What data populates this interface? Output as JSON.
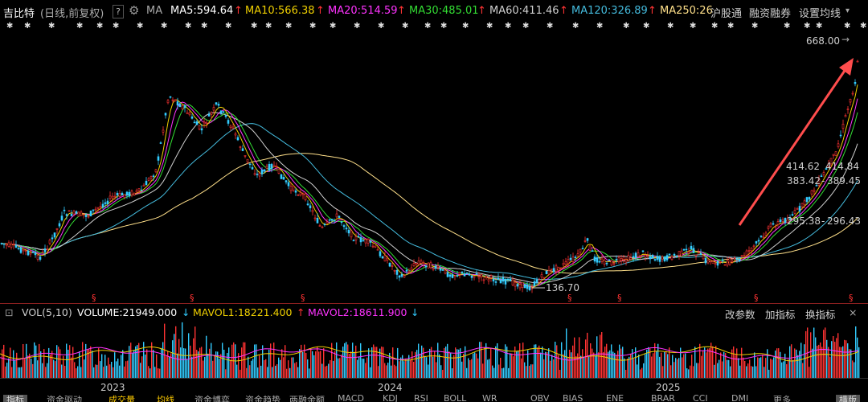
{
  "header": {
    "stock_name": "吉比特",
    "mode": "(日线,前复权)",
    "help": "?",
    "ma_label": "MA",
    "ma5": "MA5:594.64",
    "ma10": "MA10:566.38",
    "ma20": "MA20:514.59",
    "ma30": "MA30:485.01",
    "ma60": "MA60:411.46",
    "ma120": "MA120:326.89",
    "ma250": "MA250:26",
    "up_arrow": "↑",
    "menu1": "沪股通",
    "menu2": "融资融券",
    "menu3": "设置均线",
    "menu_arrow": "▾"
  },
  "colors": {
    "ma5": "#ffffff",
    "ma10": "#f0d000",
    "ma20": "#ff33ff",
    "ma30": "#33dd33",
    "ma60": "#cfcfcf",
    "ma120": "#44bbdd",
    "ma250": "#ffe08a",
    "up": "#ff3333",
    "down": "#33ccff",
    "arrow": "#ff4d4d"
  },
  "annotations": {
    "high": "668.00",
    "low": "136.70",
    "p1": "414.62",
    "p1b": "414.84",
    "p2": "383.42",
    "p2b": "389.45",
    "p3": "295.38",
    "p3b": "296.43",
    "dash": "-"
  },
  "volume": {
    "label": "VOL(5,10)",
    "volume": "VOLUME:21949.000",
    "mavol1": "MAVOL1:18221.400",
    "mavol2": "MAVOL2:18611.900",
    "down_arrow": "↓",
    "up_arrow": "↑",
    "btn_params": "改参数",
    "btn_add": "加指标",
    "btn_switch": "换指标"
  },
  "xaxis": {
    "y2023": "2023",
    "y2024": "2024",
    "y2025": "2025"
  },
  "bottom_tabs": [
    "指标",
    "资金驱动",
    "成交量",
    "均线",
    "资金博弈",
    "资金趋势",
    "两融余额",
    "MACD",
    "KDJ",
    "RSI",
    "BOLL",
    "WR",
    "OBV",
    "BIAS",
    "ENE",
    "BRAR",
    "CCI",
    "DMI",
    "更多",
    "横版"
  ]
}
